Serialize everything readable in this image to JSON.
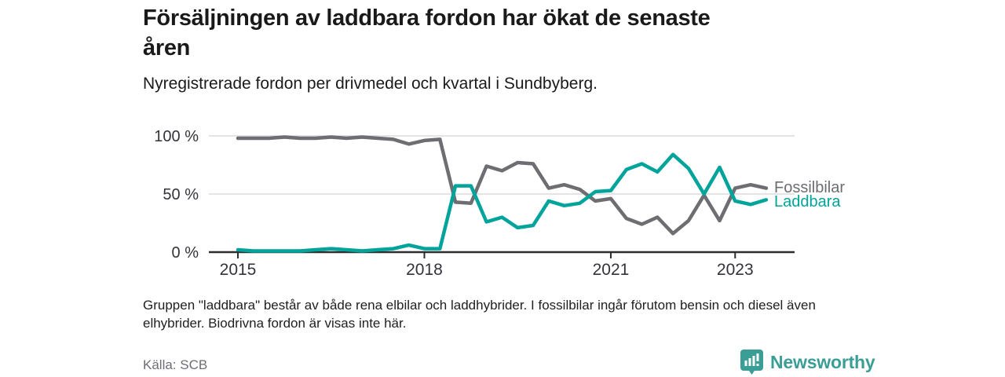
{
  "header": {
    "title_lines": [
      "Försäljningen av laddbara fordon har ökat de senaste",
      "åren"
    ],
    "subtitle": "Nyregistrerade fordon per drivmedel och kvartal i Sundbyberg."
  },
  "chart_data": {
    "type": "line",
    "title": "Nyregistrerade fordon per drivmedel och kvartal i Sundbyberg",
    "x_unit": "quarter",
    "quarters": [
      "2015Q1",
      "2015Q2",
      "2015Q3",
      "2015Q4",
      "2016Q1",
      "2016Q2",
      "2016Q3",
      "2016Q4",
      "2017Q1",
      "2017Q2",
      "2017Q3",
      "2017Q4",
      "2018Q1",
      "2018Q2",
      "2018Q3",
      "2018Q4",
      "2019Q1",
      "2019Q2",
      "2019Q3",
      "2019Q4",
      "2020Q1",
      "2020Q2",
      "2020Q3",
      "2020Q4",
      "2021Q1",
      "2021Q2",
      "2021Q3",
      "2021Q4",
      "2022Q1",
      "2022Q2",
      "2022Q3",
      "2022Q4",
      "2023Q1",
      "2023Q2",
      "2023Q3"
    ],
    "series": [
      {
        "name": "Fossilbilar",
        "color": "#6d6d72",
        "values": [
          98,
          98,
          98,
          99,
          98,
          98,
          99,
          98,
          99,
          98,
          97,
          93,
          96,
          97,
          43,
          42,
          74,
          70,
          77,
          76,
          55,
          58,
          54,
          44,
          46,
          29,
          24,
          30,
          16,
          27,
          49,
          27,
          55,
          58,
          55
        ]
      },
      {
        "name": "Laddbara",
        "color": "#00a49a",
        "values": [
          2,
          1,
          1,
          1,
          1,
          2,
          3,
          2,
          1,
          2,
          3,
          6,
          3,
          3,
          57,
          57,
          26,
          30,
          21,
          23,
          44,
          40,
          42,
          52,
          53,
          71,
          76,
          69,
          84,
          72,
          50,
          73,
          44,
          41,
          45
        ]
      }
    ],
    "ylim": [
      0,
      100
    ],
    "yticks": [
      {
        "value": 0,
        "label": "0 %"
      },
      {
        "value": 50,
        "label": "50 %"
      },
      {
        "value": 100,
        "label": "100 %"
      }
    ],
    "xticks": [
      {
        "index": 0,
        "label": "2015"
      },
      {
        "index": 12,
        "label": "2018"
      },
      {
        "index": 24,
        "label": "2021"
      },
      {
        "index": 32,
        "label": "2023"
      }
    ],
    "grid": "horizontal",
    "legend_position": "right-end-of-lines"
  },
  "footnote_lines": [
    "Gruppen \"laddbara\" består av både rena elbilar och laddhybrider. I fossilbilar ingår förutom bensin och diesel även",
    "elhybrider. Biodrivna fordon är visas inte här."
  ],
  "source": "Källa: SCB",
  "branding": {
    "logo_text": "Newsworthy",
    "logo_icon": "bar-chart-speech-bubble-icon",
    "logo_color": "#3b9e96"
  },
  "colors": {
    "fossil_line": "#6d6d72",
    "laddbara_line": "#00a49a",
    "axis": "#2d2d2d",
    "grid": "#dbdbdb",
    "axis_label": "#33333a",
    "title": "#1a1a1a",
    "source_text": "#6e6e78",
    "background": "#ffffff"
  }
}
